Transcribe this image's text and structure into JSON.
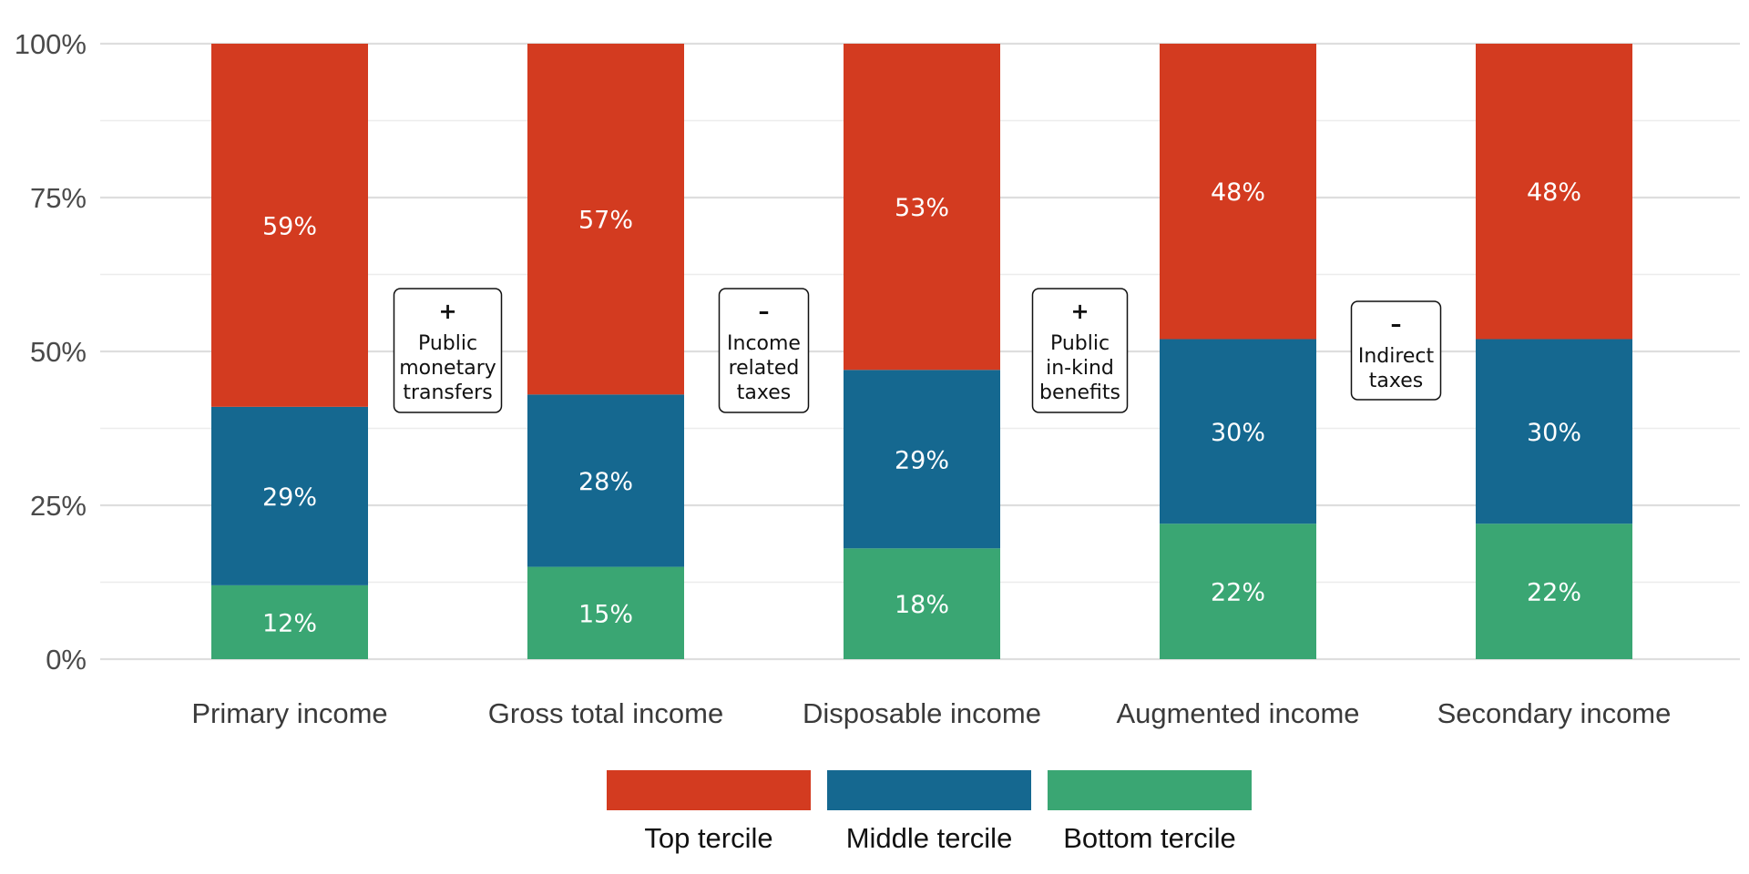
{
  "chart_data": {
    "type": "bar",
    "stacked": true,
    "categories": [
      "Primary income",
      "Gross total income",
      "Disposable income",
      "Augmented income",
      "Secondary income"
    ],
    "series": [
      {
        "name": "Bottom tercile",
        "color": "#3aa673",
        "values": [
          12,
          15,
          18,
          22,
          22
        ],
        "labels": [
          "12%",
          "15%",
          "18%",
          "22%",
          "22%"
        ]
      },
      {
        "name": "Middle tercile",
        "color": "#156890",
        "values": [
          29,
          28,
          29,
          30,
          30
        ],
        "labels": [
          "29%",
          "28%",
          "29%",
          "30%",
          "30%"
        ]
      },
      {
        "name": "Top tercile",
        "color": "#d33b20",
        "values": [
          59,
          57,
          53,
          48,
          48
        ],
        "labels": [
          "59%",
          "57%",
          "53%",
          "48%",
          "48%"
        ]
      }
    ],
    "ylim": [
      0,
      100
    ],
    "yticks": [
      0,
      25,
      50,
      75,
      100
    ],
    "ytick_labels": [
      "0%",
      "25%",
      "50%",
      "75%",
      "100%"
    ],
    "grid": true,
    "legend": {
      "position": "bottom",
      "order": [
        "Top tercile",
        "Middle tercile",
        "Bottom tercile"
      ]
    },
    "annotations": [
      {
        "between": [
          0,
          1
        ],
        "sign": "+",
        "lines": [
          "Public",
          "monetary",
          "transfers"
        ]
      },
      {
        "between": [
          1,
          2
        ],
        "sign": "–",
        "lines": [
          "Income",
          "related",
          "taxes"
        ]
      },
      {
        "between": [
          2,
          3
        ],
        "sign": "+",
        "lines": [
          "Public",
          "in-kind",
          "benefits"
        ]
      },
      {
        "between": [
          3,
          4
        ],
        "sign": "–",
        "lines": [
          "Indirect",
          "taxes"
        ]
      }
    ]
  }
}
